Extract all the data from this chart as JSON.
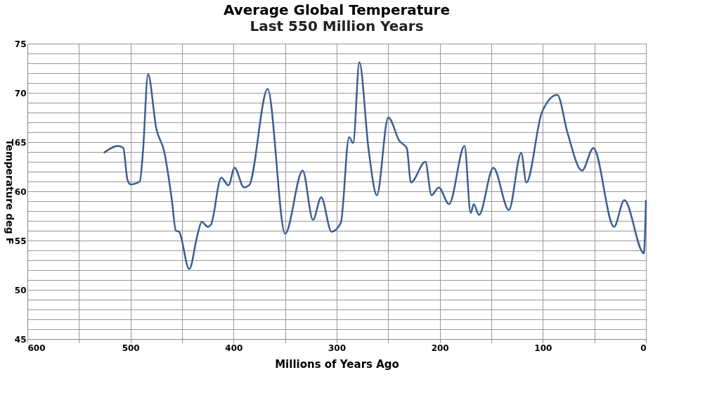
{
  "chart_data": {
    "type": "line",
    "title": "Average Global Temperature",
    "subtitle": "Last 550 Million Years",
    "xlabel": "Millions of Years Ago",
    "ylabel": "Temperature  deg  F",
    "series": [
      {
        "color": "#3a5f93",
        "x": [
          526,
          512,
          507,
          503,
          500,
          491,
          488,
          483,
          475,
          467,
          460,
          456,
          453,
          443,
          435,
          431,
          425,
          422,
          412,
          405,
          399,
          390,
          385,
          367,
          350,
          333,
          323,
          315,
          305,
          296,
          288,
          284,
          278,
          269,
          261,
          250,
          239,
          232,
          228,
          214,
          208,
          201,
          191,
          176,
          170,
          167,
          162,
          148,
          133,
          121,
          116,
          101,
          86,
          76,
          62,
          51,
          31,
          21,
          2,
          0
        ],
        "values": [
          63.9,
          64.6,
          64.4,
          61.2,
          60.7,
          61.0,
          63.9,
          71.9,
          66.4,
          63.9,
          59.2,
          56.0,
          55.9,
          52.1,
          55.6,
          56.9,
          56.4,
          56.6,
          61.4,
          60.6,
          62.4,
          60.4,
          60.6,
          70.4,
          55.7,
          62.1,
          57.1,
          59.4,
          55.9,
          56.8,
          65.5,
          64.9,
          73.1,
          64.2,
          59.6,
          67.5,
          65.1,
          64.4,
          60.9,
          63.0,
          59.6,
          60.4,
          58.7,
          64.6,
          57.8,
          58.7,
          57.6,
          62.4,
          58.1,
          63.9,
          60.9,
          68.0,
          69.8,
          65.9,
          62.1,
          64.4,
          56.4,
          59.1,
          53.7,
          59.1
        ]
      }
    ],
    "xlim": [
      600,
      0
    ],
    "xticks": [
      600,
      {
        "value": 550,
        "label": null
      },
      500,
      {
        "value": 450,
        "label": null
      },
      400,
      {
        "value": 350,
        "label": null
      },
      300,
      {
        "value": 250,
        "label": null
      },
      200,
      {
        "value": 150,
        "label": null
      },
      100,
      {
        "value": 50,
        "label": null
      },
      0
    ],
    "ylim": [
      45,
      75
    ],
    "yticks": [
      45,
      {
        "value": 46,
        "label": null
      },
      {
        "value": 47,
        "label": null
      },
      {
        "value": 48,
        "label": null
      },
      {
        "value": 49,
        "label": null
      },
      50,
      {
        "value": 51,
        "label": null
      },
      {
        "value": 52,
        "label": null
      },
      {
        "value": 53,
        "label": null
      },
      {
        "value": 54,
        "label": null
      },
      55,
      {
        "value": 56,
        "label": null
      },
      {
        "value": 57,
        "label": null
      },
      {
        "value": 58,
        "label": null
      },
      {
        "value": 59,
        "label": null
      },
      60,
      {
        "value": 61,
        "label": null
      },
      {
        "value": 62,
        "label": null
      },
      {
        "value": 63,
        "label": null
      },
      {
        "value": 64,
        "label": null
      },
      65,
      {
        "value": 66,
        "label": null
      },
      {
        "value": 67,
        "label": null
      },
      {
        "value": 68,
        "label": null
      },
      {
        "value": 69,
        "label": null
      },
      70,
      {
        "value": 71,
        "label": null
      },
      {
        "value": 72,
        "label": null
      },
      {
        "value": 73,
        "label": null
      },
      {
        "value": 74,
        "label": null
      },
      75
    ],
    "grid": true,
    "marker": "none",
    "line_style": "solid",
    "legend": false
  }
}
